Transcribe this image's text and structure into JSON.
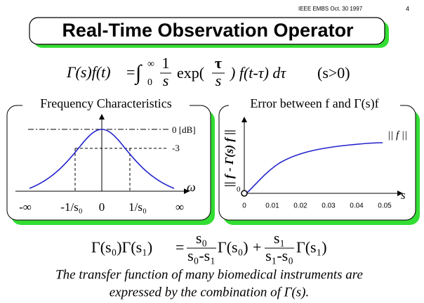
{
  "header": {
    "source": "IEEE EMBS Oct. 30 1997",
    "page": "4"
  },
  "title": "Real-Time Observation Operator",
  "definition": {
    "lhs": "Γ(s)f(t)",
    "equals": "=",
    "integral": "∫",
    "upper": "∞",
    "lower": "0",
    "frac_num": "1",
    "frac_den": "s",
    "exp": "exp(",
    "tau_num": "τ",
    "tau_den": "s",
    "rest": ") f(t-τ) dτ",
    "condition": "(s>0)"
  },
  "left_panel": {
    "title": "Frequency Characteristics",
    "level_0": "0 [dB]",
    "level_3": "-3",
    "axis": "ω",
    "x_labels": [
      "-∞",
      "-1/s₀",
      "0",
      "1/s₀",
      "∞"
    ]
  },
  "right_panel": {
    "title": "Error between f and Γ(s)f",
    "y_label": "|| f - Γ(s) f ||",
    "y_zero": "0",
    "x_axis": "s",
    "asymptote": "|| f ||",
    "x_labels": [
      "0",
      "0.01",
      "0.02",
      "0.03",
      "0.04",
      "0.05"
    ]
  },
  "composition": {
    "lhs": "Γ(s₀)Γ(s₁)",
    "equals": "=",
    "num1": "s₀",
    "den1": "s₀-s₁",
    "term1": "Γ(s₀)",
    "plus": "+",
    "num2": "s₁",
    "den2": "s₁-s₀",
    "term2": "Γ(s₁)"
  },
  "caption": [
    "The transfer function of many biomedical instruments are",
    "expressed by the combination of Γ(s)."
  ]
}
